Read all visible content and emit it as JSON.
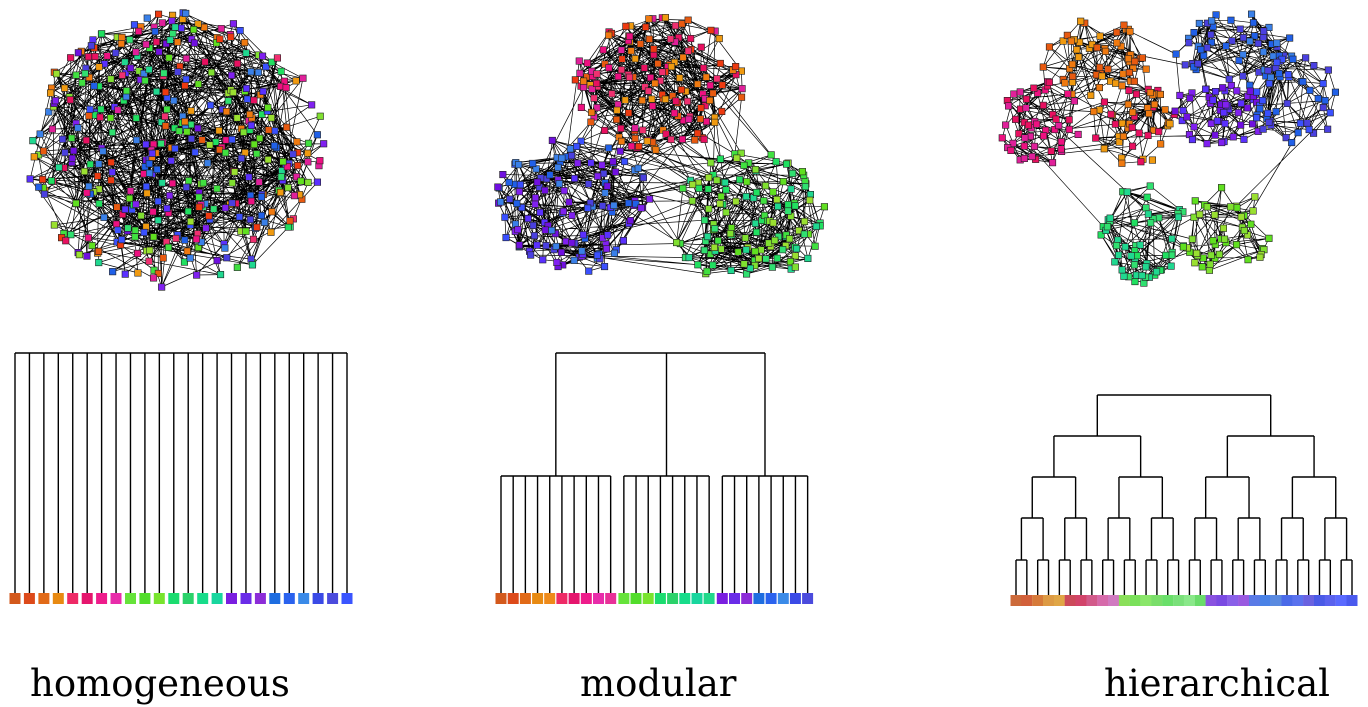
{
  "panels": [
    {
      "id": "homogeneous",
      "caption": "homogeneous",
      "network": {
        "structure": "single-cluster",
        "nodes_per_group": 38,
        "groups": 12
      },
      "dendrogram": {
        "structure": "flat",
        "leaves": 24,
        "leaf_colors": [
          "#d3591c",
          "#dd4a1a",
          "#e16a18",
          "#e88a12",
          "#ee2a66",
          "#e5156d",
          "#ee1c8b",
          "#e82caa",
          "#66e33a",
          "#52dd2b",
          "#78e42d",
          "#1bdc6f",
          "#2bd26a",
          "#17dc8a",
          "#18d69e",
          "#7a1ee0",
          "#6a2ce8",
          "#8c2cd8",
          "#1e6de0",
          "#2a62ee",
          "#3a8ae8",
          "#3a4ae6",
          "#4b4bdd",
          "#3a55ff"
        ]
      }
    },
    {
      "id": "modular",
      "caption": "modular",
      "network": {
        "structure": "three-modules",
        "modules": [
          "warm",
          "violet-blue",
          "green"
        ]
      },
      "dendrogram": {
        "structure": "modular",
        "module_sizes": [
          10,
          8,
          8
        ],
        "leaf_colors": [
          "#d3591c",
          "#dd4a1a",
          "#e16a18",
          "#e88a12",
          "#ee8a1a",
          "#ee2a66",
          "#e5156d",
          "#ee1c8b",
          "#e82caa",
          "#e83098",
          "#66e33a",
          "#52dd2b",
          "#78e42d",
          "#1bdc6f",
          "#2bd26a",
          "#17dc8a",
          "#18d69e",
          "#20d88a",
          "#7a1ee0",
          "#6a2ce8",
          "#8c2cd8",
          "#1e6de0",
          "#2a62ee",
          "#3a8ae8",
          "#3a4ae6",
          "#4b4bdd"
        ]
      }
    },
    {
      "id": "hierarchical",
      "caption": "hierarchical",
      "network": {
        "structure": "hierarchical-modules",
        "modules": [
          "warm",
          "violet-blue",
          "green"
        ]
      },
      "dendrogram": {
        "structure": "hierarchical",
        "leaves": 32,
        "leaf_colors": [
          "#cc6a3a",
          "#d2603a",
          "#d67a3a",
          "#dd9a44",
          "#e0a646",
          "#cc4a5a",
          "#d2446a",
          "#d25a8a",
          "#d66aaa",
          "#d07ac0",
          "#8adf5a",
          "#7ae05a",
          "#8ae66a",
          "#7ade6a",
          "#6adf6a",
          "#7ae07a",
          "#8ae88a",
          "#6adc6a",
          "#8a52e0",
          "#7a4ae2",
          "#8a60e8",
          "#9a5ae0",
          "#5a7ae6",
          "#4a82e6",
          "#5a8ae0",
          "#4a6ae8",
          "#5a72ee",
          "#6a62e0",
          "#4a5ae6",
          "#5a62ee",
          "#5a6aff",
          "#4a5aee"
        ]
      }
    }
  ],
  "colors": {
    "edge": "#000000",
    "node_stroke": "#222222",
    "dendrogram_line": "#000000"
  }
}
